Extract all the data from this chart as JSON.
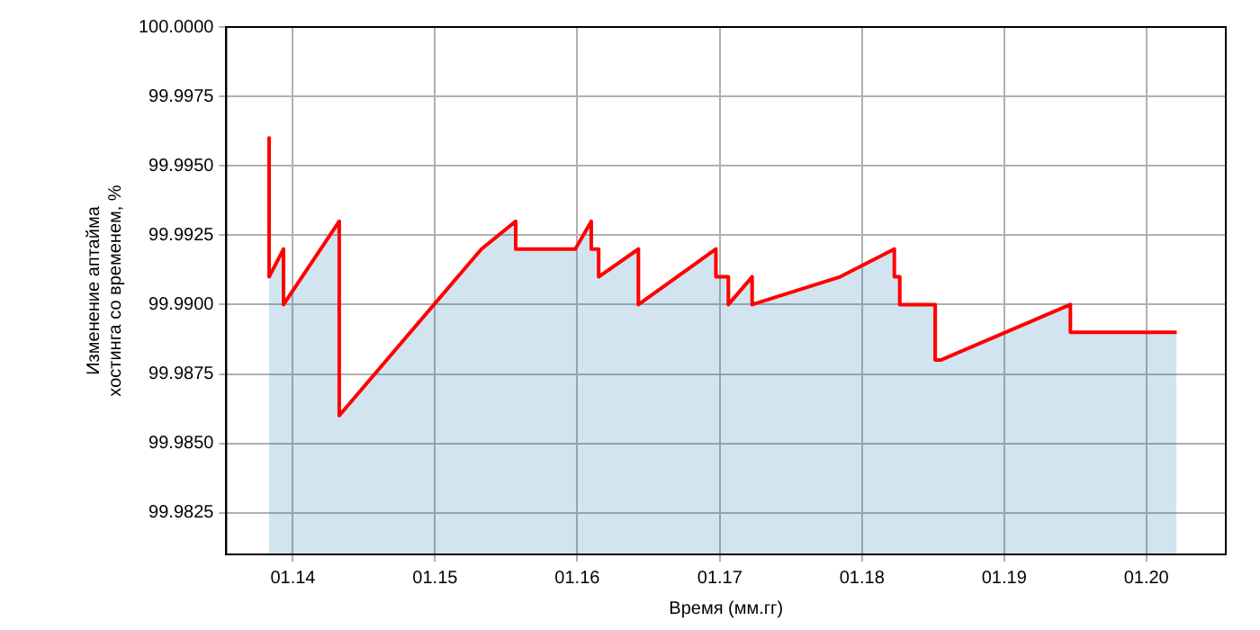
{
  "chart_data": {
    "type": "area",
    "xlabel": "Время (мм.гг)",
    "ylabel": "Изменение аптайма\nхостинга со временем, %",
    "series": [
      {
        "color": "#1f77b4",
        "x": [
          "2013-11-01",
          "2013-11-01",
          "2013-12-08",
          "2013-12-08",
          "2014-04-30",
          "2014-04-30",
          "2015-04-30",
          "2015-07-27",
          "2015-07-27",
          "2015-12-27",
          "2016-02-06",
          "2016-02-06",
          "2016-02-25",
          "2016-02-25",
          "2016-06-06",
          "2016-06-06",
          "2016-12-22",
          "2016-12-22",
          "2017-01-23",
          "2017-01-23",
          "2017-03-25",
          "2017-03-25",
          "2017-11-06",
          "2018-03-25",
          "2018-03-25",
          "2018-04-08",
          "2018-04-08",
          "2018-07-08",
          "2018-07-08",
          "2018-07-22",
          "2019-06-20",
          "2019-06-20",
          "2020-03-19"
        ],
        "values": [
          99.996,
          99.991,
          99.992,
          99.99,
          99.993,
          99.986,
          99.992,
          99.993,
          99.992,
          99.992,
          99.993,
          99.992,
          99.992,
          99.991,
          99.992,
          99.99,
          99.992,
          99.991,
          99.991,
          99.99,
          99.991,
          99.99,
          99.991,
          99.992,
          99.991,
          99.991,
          99.99,
          99.99,
          99.988,
          99.988,
          99.99,
          99.989,
          99.989
        ]
      },
      {
        "color": "#ff0000",
        "type": "line",
        "x": [
          "2013-11-01",
          "2013-11-01",
          "2013-12-08",
          "2013-12-08",
          "2014-04-30",
          "2014-04-30",
          "2015-04-30",
          "2015-07-27",
          "2015-07-27",
          "2015-12-27",
          "2016-02-06",
          "2016-02-06",
          "2016-02-25",
          "2016-02-25",
          "2016-06-06",
          "2016-06-06",
          "2016-12-22",
          "2016-12-22",
          "2017-01-23",
          "2017-01-23",
          "2017-03-25",
          "2017-03-25",
          "2017-11-06",
          "2018-03-25",
          "2018-03-25",
          "2018-04-08",
          "2018-04-08",
          "2018-07-08",
          "2018-07-08",
          "2018-07-22",
          "2019-06-20",
          "2019-06-20",
          "2020-03-19"
        ],
        "values": [
          99.996,
          99.991,
          99.992,
          99.99,
          99.993,
          99.986,
          99.992,
          99.993,
          99.992,
          99.992,
          99.993,
          99.992,
          99.992,
          99.991,
          99.992,
          99.99,
          99.992,
          99.991,
          99.991,
          99.99,
          99.991,
          99.99,
          99.991,
          99.992,
          99.991,
          99.991,
          99.99,
          99.99,
          99.988,
          99.988,
          99.99,
          99.989,
          99.989
        ]
      }
    ],
    "xlim": [
      "2013-07-14",
      "2020-07-23"
    ],
    "xticks": [
      {
        "value": "2014-01",
        "label": "01.14"
      },
      {
        "value": "2015-01",
        "label": "01.15"
      },
      {
        "value": "2016-01",
        "label": "01.16"
      },
      {
        "value": "2017-01",
        "label": "01.17"
      },
      {
        "value": "2018-01",
        "label": "01.18"
      },
      {
        "value": "2019-01",
        "label": "01.19"
      },
      {
        "value": "2020-01",
        "label": "01.20"
      }
    ],
    "ylim": [
      99.981,
      100
    ],
    "yticks": [
      {
        "value": 99.9825,
        "label": "99.9825"
      },
      {
        "value": 99.985,
        "label": "99.9850"
      },
      {
        "value": 99.9875,
        "label": "99.9875"
      },
      {
        "value": 99.99,
        "label": "99.9900"
      },
      {
        "value": 99.9925,
        "label": "99.9925"
      },
      {
        "value": 99.995,
        "label": "99.9950"
      },
      {
        "value": 99.9975,
        "label": "99.9975"
      },
      {
        "value": 100,
        "label": "100.0000"
      }
    ],
    "grid": true
  }
}
